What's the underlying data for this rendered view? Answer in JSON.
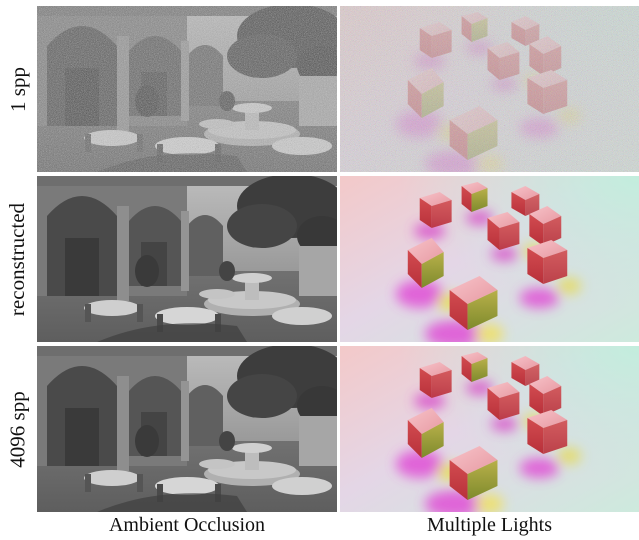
{
  "row_labels": [
    "1 spp",
    "reconstructed",
    "4096 spp"
  ],
  "column_labels": [
    "Ambient Occlusion",
    "Multiple Lights"
  ]
}
